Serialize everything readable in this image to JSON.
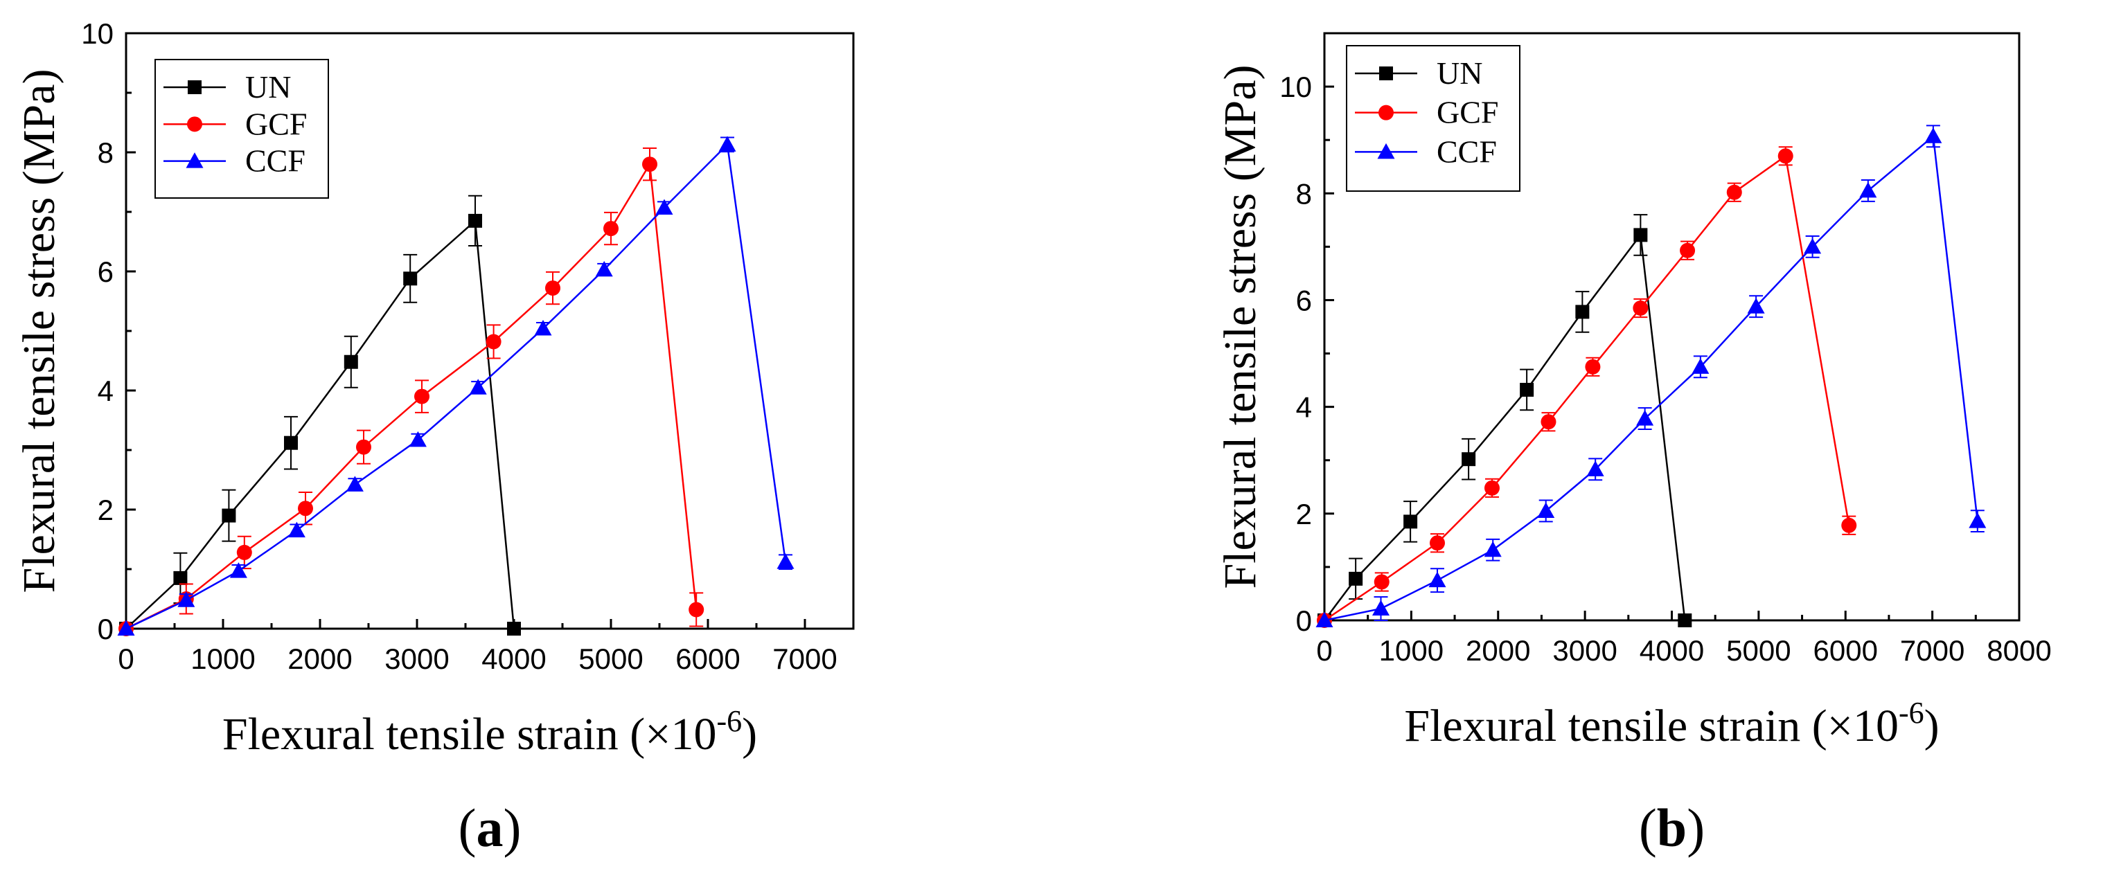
{
  "chart_data": [
    {
      "type": "line",
      "panel_label": "(a)",
      "panel_letter": "a",
      "xlabel": "Flexural tensile strain (×10",
      "xlabel_sup": "-6",
      "xlabel_close": ")",
      "ylabel": "Flexural tensile stress (MPa)",
      "xlim": [
        0,
        7500
      ],
      "ylim": [
        0,
        10
      ],
      "xticks": [
        0,
        1000,
        2000,
        3000,
        4000,
        5000,
        6000,
        7000
      ],
      "yticks": [
        0,
        2,
        4,
        6,
        8,
        10
      ],
      "legend_position": "top-left",
      "series": [
        {
          "name": "UN",
          "color": "#000000",
          "marker": "square",
          "points": [
            {
              "x": 0,
              "y": 0,
              "err": 0
            },
            {
              "x": 560,
              "y": 0.85,
              "err": 0.42
            },
            {
              "x": 1060,
              "y": 1.9,
              "err": 0.43
            },
            {
              "x": 1700,
              "y": 3.12,
              "err": 0.44
            },
            {
              "x": 2320,
              "y": 4.48,
              "err": 0.43
            },
            {
              "x": 2930,
              "y": 5.88,
              "err": 0.4
            },
            {
              "x": 3600,
              "y": 6.85,
              "err": 0.42
            },
            {
              "x": 4000,
              "y": 0,
              "err": 0
            }
          ]
        },
        {
          "name": "GCF",
          "color": "#ff0000",
          "marker": "circle",
          "points": [
            {
              "x": 0,
              "y": 0,
              "err": 0
            },
            {
              "x": 620,
              "y": 0.5,
              "err": 0.25
            },
            {
              "x": 1220,
              "y": 1.28,
              "err": 0.27
            },
            {
              "x": 1850,
              "y": 2.02,
              "err": 0.27
            },
            {
              "x": 2450,
              "y": 3.05,
              "err": 0.28
            },
            {
              "x": 3050,
              "y": 3.9,
              "err": 0.27
            },
            {
              "x": 3790,
              "y": 4.82,
              "err": 0.28
            },
            {
              "x": 4400,
              "y": 5.72,
              "err": 0.27
            },
            {
              "x": 5000,
              "y": 6.72,
              "err": 0.27
            },
            {
              "x": 5400,
              "y": 7.8,
              "err": 0.27
            },
            {
              "x": 5880,
              "y": 0.32,
              "err": 0.28
            }
          ]
        },
        {
          "name": "CCF",
          "color": "#0000ff",
          "marker": "triangle",
          "points": [
            {
              "x": 0,
              "y": 0,
              "err": 0
            },
            {
              "x": 620,
              "y": 0.48,
              "err": 0.1
            },
            {
              "x": 1160,
              "y": 0.97,
              "err": 0.1
            },
            {
              "x": 1760,
              "y": 1.65,
              "err": 0.1
            },
            {
              "x": 2360,
              "y": 2.42,
              "err": 0.1
            },
            {
              "x": 3010,
              "y": 3.17,
              "err": 0.1
            },
            {
              "x": 3630,
              "y": 4.05,
              "err": 0.1
            },
            {
              "x": 4300,
              "y": 5.04,
              "err": 0.1
            },
            {
              "x": 4930,
              "y": 6.03,
              "err": 0.1
            },
            {
              "x": 5550,
              "y": 7.07,
              "err": 0.1
            },
            {
              "x": 6200,
              "y": 8.13,
              "err": 0.12
            },
            {
              "x": 6800,
              "y": 1.12,
              "err": 0.12
            }
          ]
        }
      ]
    },
    {
      "type": "line",
      "panel_label": "(b)",
      "panel_letter": "b",
      "xlabel": "Flexural tensile strain (×10",
      "xlabel_sup": "-6",
      "xlabel_close": ")",
      "ylabel": "Flexural tensile stress (MPa)",
      "xlim": [
        0,
        8000
      ],
      "ylim": [
        0,
        11
      ],
      "xticks": [
        0,
        1000,
        2000,
        3000,
        4000,
        5000,
        6000,
        7000,
        8000
      ],
      "yticks": [
        0,
        2,
        4,
        6,
        8,
        10
      ],
      "legend_position": "top-left",
      "series": [
        {
          "name": "UN",
          "color": "#000000",
          "marker": "square",
          "points": [
            {
              "x": 0,
              "y": 0,
              "err": 0
            },
            {
              "x": 360,
              "y": 0.78,
              "err": 0.38
            },
            {
              "x": 990,
              "y": 1.85,
              "err": 0.38
            },
            {
              "x": 1660,
              "y": 3.02,
              "err": 0.38
            },
            {
              "x": 2330,
              "y": 4.32,
              "err": 0.38
            },
            {
              "x": 2970,
              "y": 5.78,
              "err": 0.38
            },
            {
              "x": 3640,
              "y": 7.22,
              "err": 0.38
            },
            {
              "x": 4150,
              "y": 0,
              "err": 0
            }
          ]
        },
        {
          "name": "GCF",
          "color": "#ff0000",
          "marker": "circle",
          "points": [
            {
              "x": 0,
              "y": 0,
              "err": 0
            },
            {
              "x": 660,
              "y": 0.72,
              "err": 0.17
            },
            {
              "x": 1300,
              "y": 1.45,
              "err": 0.17
            },
            {
              "x": 1930,
              "y": 2.48,
              "err": 0.17
            },
            {
              "x": 2580,
              "y": 3.72,
              "err": 0.17
            },
            {
              "x": 3090,
              "y": 4.75,
              "err": 0.17
            },
            {
              "x": 3640,
              "y": 5.85,
              "err": 0.17
            },
            {
              "x": 4180,
              "y": 6.93,
              "err": 0.17
            },
            {
              "x": 4720,
              "y": 8.02,
              "err": 0.17
            },
            {
              "x": 5310,
              "y": 8.7,
              "err": 0.17
            },
            {
              "x": 6040,
              "y": 1.78,
              "err": 0.17
            }
          ]
        },
        {
          "name": "CCF",
          "color": "#0000ff",
          "marker": "triangle",
          "points": [
            {
              "x": 0,
              "y": 0,
              "err": 0
            },
            {
              "x": 650,
              "y": 0.22,
              "err": 0.22
            },
            {
              "x": 1300,
              "y": 0.75,
              "err": 0.22
            },
            {
              "x": 1940,
              "y": 1.32,
              "err": 0.2
            },
            {
              "x": 2550,
              "y": 2.05,
              "err": 0.2
            },
            {
              "x": 3120,
              "y": 2.83,
              "err": 0.2
            },
            {
              "x": 3690,
              "y": 3.78,
              "err": 0.2
            },
            {
              "x": 4330,
              "y": 4.75,
              "err": 0.2
            },
            {
              "x": 4970,
              "y": 5.88,
              "err": 0.2
            },
            {
              "x": 5620,
              "y": 7.0,
              "err": 0.2
            },
            {
              "x": 6260,
              "y": 8.05,
              "err": 0.2
            },
            {
              "x": 7010,
              "y": 9.07,
              "err": 0.2
            },
            {
              "x": 7520,
              "y": 1.86,
              "err": 0.2
            }
          ]
        }
      ]
    }
  ]
}
